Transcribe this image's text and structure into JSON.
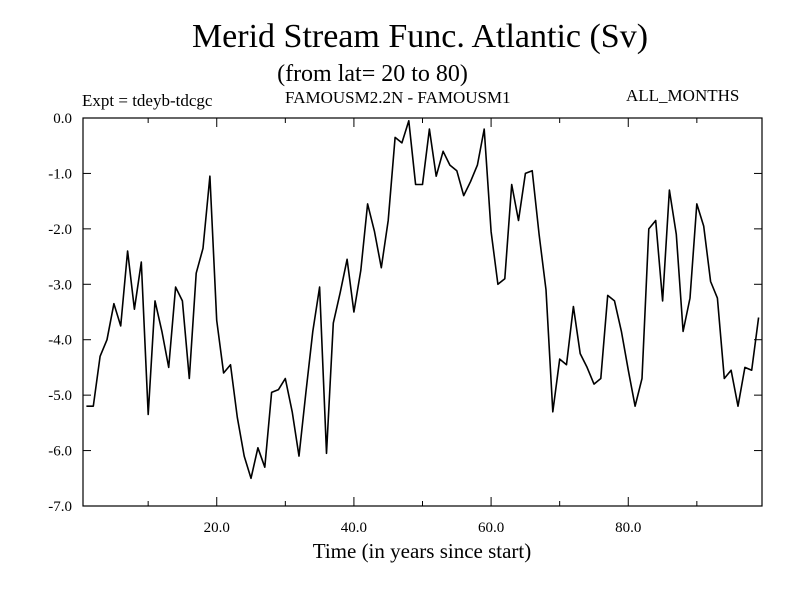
{
  "chart_data": {
    "type": "line",
    "title": "Merid Stream Func. Atlantic (Sv)",
    "subtitle": "(from lat= 20 to 80)",
    "annotations": {
      "expt": "Expt = tdeyb-tdcgc",
      "models": "FAMOUSM2.2N - FAMOUSM1",
      "months": "ALL_MONTHS"
    },
    "xlabel": "Time (in years since start)",
    "ylabel": "",
    "xlim": [
      0.5,
      99.5
    ],
    "ylim": [
      -7.0,
      0.0
    ],
    "x_ticks": [
      20,
      40,
      60,
      80
    ],
    "x_tick_labels": [
      "20.0",
      "40.0",
      "60.0",
      "80.0"
    ],
    "y_ticks": [
      0,
      -1,
      -2,
      -3,
      -4,
      -5,
      -6,
      -7
    ],
    "y_tick_labels": [
      "0.0",
      "-1.0",
      "-2.0",
      "-3.0",
      "-4.0",
      "-5.0",
      "-6.0",
      "-7.0"
    ],
    "grid": false,
    "legend": "none",
    "series": [
      {
        "color": "#000000",
        "x": [
          1,
          2,
          3,
          4,
          5,
          6,
          7,
          8,
          9,
          10,
          11,
          12,
          13,
          14,
          15,
          16,
          17,
          18,
          19,
          20,
          21,
          22,
          23,
          24,
          25,
          26,
          27,
          28,
          29,
          30,
          31,
          32,
          33,
          34,
          35,
          36,
          37,
          38,
          39,
          40,
          41,
          42,
          43,
          44,
          45,
          46,
          47,
          48,
          49,
          50,
          51,
          52,
          53,
          54,
          55,
          56,
          57,
          58,
          59,
          60,
          61,
          62,
          63,
          64,
          65,
          66,
          67,
          68,
          69,
          70,
          71,
          72,
          73,
          74,
          75,
          76,
          77,
          78,
          79,
          80,
          81,
          82,
          83,
          84,
          85,
          86,
          87,
          88,
          89,
          90,
          91,
          92,
          93,
          94,
          95,
          96,
          97,
          98,
          99
        ],
        "y": [
          -5.2,
          -5.2,
          -4.3,
          -4.0,
          -3.35,
          -3.75,
          -2.4,
          -3.45,
          -2.6,
          -5.35,
          -3.3,
          -3.85,
          -4.5,
          -3.05,
          -3.3,
          -4.7,
          -2.8,
          -2.35,
          -1.05,
          -3.65,
          -4.6,
          -4.45,
          -5.4,
          -6.1,
          -6.5,
          -5.95,
          -6.3,
          -4.95,
          -4.9,
          -4.7,
          -5.3,
          -6.1,
          -4.95,
          -3.85,
          -3.05,
          -6.05,
          -3.7,
          -3.15,
          -2.55,
          -3.5,
          -2.75,
          -1.55,
          -2.05,
          -2.7,
          -1.85,
          -0.35,
          -0.45,
          -0.05,
          -1.2,
          -1.2,
          -0.2,
          -1.05,
          -0.6,
          -0.85,
          -0.95,
          -1.4,
          -1.15,
          -0.85,
          -0.2,
          -2.05,
          -3.0,
          -2.9,
          -1.2,
          -1.85,
          -1.0,
          -0.95,
          -2.1,
          -3.1,
          -5.3,
          -4.35,
          -4.45,
          -3.4,
          -4.25,
          -4.5,
          -4.8,
          -4.7,
          -3.2,
          -3.3,
          -3.85,
          -4.55,
          -5.2,
          -4.7,
          -2.0,
          -1.85,
          -3.3,
          -1.3,
          -2.1,
          -3.85,
          -3.25,
          -1.55,
          -1.95,
          -2.95,
          -3.25,
          -4.7,
          -4.55,
          -5.2,
          -4.5,
          -4.55,
          -3.6
        ]
      }
    ]
  }
}
